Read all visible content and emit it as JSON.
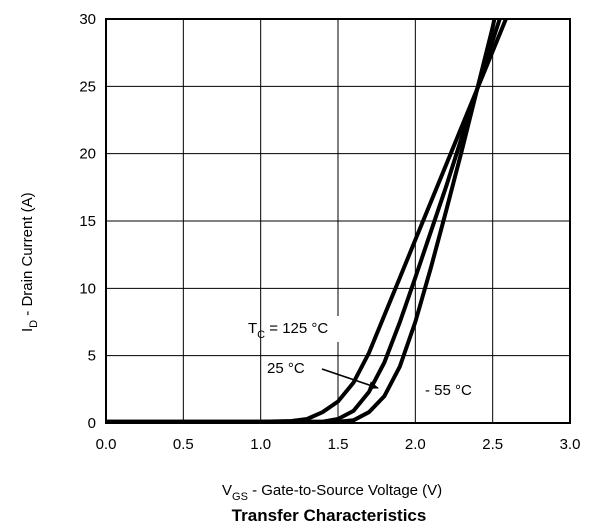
{
  "chart_data": {
    "type": "line",
    "title": "Transfer Characteristics",
    "xlabel": {
      "main": "V",
      "sub": "GS",
      "rest": " -  Gate-to-Source Voltage (V)"
    },
    "ylabel": {
      "main": "I",
      "sub": "D",
      "rest": " -  Drain Current (A)"
    },
    "xlim": [
      0,
      3
    ],
    "ylim": [
      0,
      30
    ],
    "x_ticks": [
      "0.0",
      "0.5",
      "1.0",
      "1.5",
      "2.0",
      "2.5",
      "3.0"
    ],
    "y_ticks": [
      "0",
      "5",
      "10",
      "15",
      "20",
      "25",
      "30"
    ],
    "grid": true,
    "series": [
      {
        "label": "125",
        "points": [
          [
            0,
            0.1
          ],
          [
            0.5,
            0.1
          ],
          [
            1.0,
            0.1
          ],
          [
            1.2,
            0.15
          ],
          [
            1.3,
            0.3
          ],
          [
            1.4,
            0.8
          ],
          [
            1.5,
            1.6
          ],
          [
            1.6,
            3.0
          ],
          [
            1.7,
            5.2
          ],
          [
            1.8,
            8.0
          ],
          [
            1.9,
            10.8
          ],
          [
            2.0,
            13.6
          ],
          [
            2.1,
            16.4
          ],
          [
            2.2,
            19.2
          ],
          [
            2.3,
            22.0
          ],
          [
            2.4,
            24.8
          ],
          [
            2.5,
            27.6
          ],
          [
            2.6,
            30.4
          ]
        ]
      },
      {
        "label": "25",
        "points": [
          [
            0,
            0.1
          ],
          [
            0.5,
            0.1
          ],
          [
            1.0,
            0.1
          ],
          [
            1.4,
            0.1
          ],
          [
            1.5,
            0.3
          ],
          [
            1.6,
            0.9
          ],
          [
            1.7,
            2.3
          ],
          [
            1.8,
            4.5
          ],
          [
            1.9,
            7.5
          ],
          [
            2.0,
            10.8
          ],
          [
            2.1,
            14.2
          ],
          [
            2.2,
            17.6
          ],
          [
            2.3,
            21.2
          ],
          [
            2.4,
            24.8
          ],
          [
            2.5,
            28.4
          ],
          [
            2.56,
            30.5
          ]
        ]
      },
      {
        "label": "-55",
        "points": [
          [
            0,
            0.1
          ],
          [
            0.5,
            0.1
          ],
          [
            1.0,
            0.1
          ],
          [
            1.5,
            0.1
          ],
          [
            1.6,
            0.2
          ],
          [
            1.7,
            0.8
          ],
          [
            1.8,
            2.0
          ],
          [
            1.9,
            4.2
          ],
          [
            2.0,
            7.5
          ],
          [
            2.1,
            11.5
          ],
          [
            2.2,
            15.8
          ],
          [
            2.3,
            20.2
          ],
          [
            2.4,
            24.8
          ],
          [
            2.5,
            29.4
          ],
          [
            2.52,
            30.5
          ]
        ]
      }
    ],
    "annotations": {
      "tc125": {
        "main": "T",
        "sub": "C",
        "rest": " = 125 °C"
      },
      "tc25": "25 °C",
      "tc55": "- 55 °C"
    }
  }
}
